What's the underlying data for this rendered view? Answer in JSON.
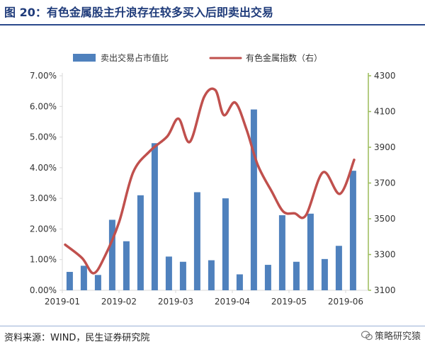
{
  "figure": {
    "title": "图 20：有色金属股主升浪存在较多买入后即卖出交易",
    "source": "资料来源：WIND，民生证券研究院",
    "watermark": "策略研究猿",
    "watermark_icon": "wechat-icon"
  },
  "chart_data": {
    "type": "bar+line",
    "colors": {
      "bar": "#4f81bd",
      "line": "#c0504d",
      "right_axis": "#9bbb59",
      "axis": "#d9d9d9"
    },
    "legend_placement": "top",
    "grid": false,
    "series": [
      {
        "name": "卖出交易占市值比",
        "type": "bar",
        "axis": "left"
      },
      {
        "name": "有色金属指数（右）",
        "type": "line",
        "axis": "right"
      }
    ],
    "left_axis": {
      "ylim": [
        0,
        0.07
      ],
      "ticks": [
        0,
        0.01,
        0.02,
        0.03,
        0.04,
        0.05,
        0.06,
        0.07
      ],
      "tick_labels": [
        "0.00%",
        "1.00%",
        "2.00%",
        "3.00%",
        "4.00%",
        "5.00%",
        "6.00%",
        "7.00%"
      ]
    },
    "right_axis": {
      "ylim": [
        3100,
        4300
      ],
      "ticks": [
        3100,
        3300,
        3500,
        3700,
        3900,
        4100,
        4300
      ],
      "tick_labels": [
        "3100",
        "3300",
        "3500",
        "3700",
        "3900",
        "4100",
        "4300"
      ]
    },
    "x_axis": {
      "range": [
        0,
        5.4
      ],
      "ticks": [
        0,
        1,
        2,
        3,
        4,
        5
      ],
      "tick_labels": [
        "2019-01",
        "2019-02",
        "2019-03",
        "2019-04",
        "2019-05",
        "2019-06"
      ]
    },
    "bars": [
      {
        "x": 0.13,
        "value": 0.006
      },
      {
        "x": 0.38,
        "value": 0.008
      },
      {
        "x": 0.63,
        "value": 0.005
      },
      {
        "x": 0.88,
        "value": 0.023
      },
      {
        "x": 1.13,
        "value": 0.016
      },
      {
        "x": 1.38,
        "value": 0.031
      },
      {
        "x": 1.63,
        "value": 0.048
      },
      {
        "x": 1.88,
        "value": 0.011
      },
      {
        "x": 2.13,
        "value": 0.0093
      },
      {
        "x": 2.38,
        "value": 0.032
      },
      {
        "x": 2.63,
        "value": 0.0098
      },
      {
        "x": 2.88,
        "value": 0.03
      },
      {
        "x": 3.13,
        "value": 0.0052
      },
      {
        "x": 3.38,
        "value": 0.059
      },
      {
        "x": 3.63,
        "value": 0.0083
      },
      {
        "x": 3.88,
        "value": 0.0245
      },
      {
        "x": 4.13,
        "value": 0.0093
      },
      {
        "x": 4.38,
        "value": 0.025
      },
      {
        "x": 4.63,
        "value": 0.0102
      },
      {
        "x": 4.88,
        "value": 0.0145
      },
      {
        "x": 5.13,
        "value": 0.039
      }
    ],
    "line": [
      {
        "x": 0.05,
        "value": 3355
      },
      {
        "x": 0.35,
        "value": 3280
      },
      {
        "x": 0.55,
        "value": 3195
      },
      {
        "x": 0.75,
        "value": 3290
      },
      {
        "x": 1.0,
        "value": 3480
      },
      {
        "x": 1.25,
        "value": 3760
      },
      {
        "x": 1.55,
        "value": 3880
      },
      {
        "x": 1.85,
        "value": 3960
      },
      {
        "x": 2.05,
        "value": 4060
      },
      {
        "x": 2.25,
        "value": 3930
      },
      {
        "x": 2.5,
        "value": 4180
      },
      {
        "x": 2.7,
        "value": 4220
      },
      {
        "x": 2.85,
        "value": 4080
      },
      {
        "x": 3.05,
        "value": 4150
      },
      {
        "x": 3.25,
        "value": 4000
      },
      {
        "x": 3.45,
        "value": 3800
      },
      {
        "x": 3.7,
        "value": 3650
      },
      {
        "x": 3.9,
        "value": 3540
      },
      {
        "x": 4.1,
        "value": 3530
      },
      {
        "x": 4.3,
        "value": 3520
      },
      {
        "x": 4.6,
        "value": 3760
      },
      {
        "x": 4.9,
        "value": 3640
      },
      {
        "x": 5.15,
        "value": 3830
      }
    ]
  }
}
